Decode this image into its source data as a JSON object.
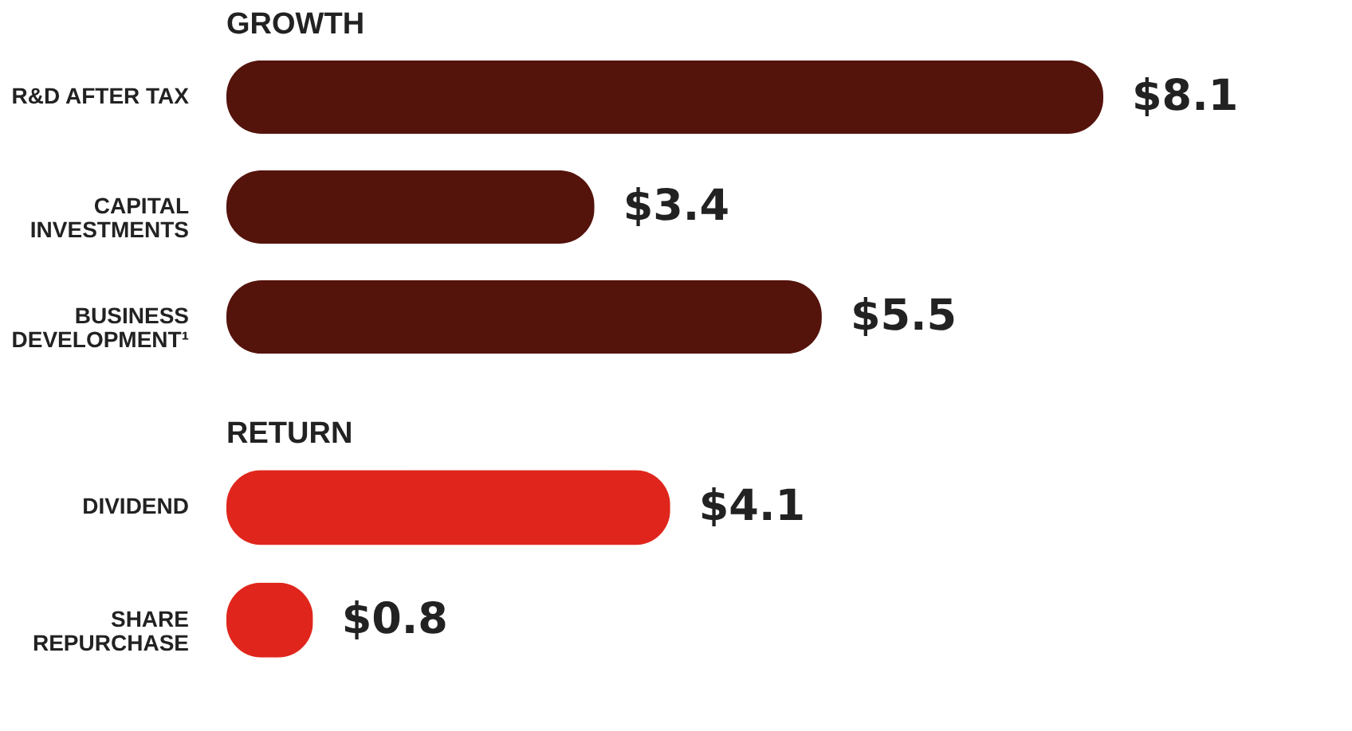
{
  "chart_data": [
    {
      "type": "bar",
      "orientation": "horizontal",
      "title": "GROWTH",
      "categories": [
        "R&D AFTER TAX",
        "CAPITAL\nINVESTMENTS",
        "BUSINESS\nDEVELOPMENT¹"
      ],
      "values": [
        8.1,
        3.4,
        5.5
      ],
      "value_labels": [
        "$8.1",
        "$3.4",
        "$5.5"
      ],
      "color": "#54130b",
      "tick_labels": "y"
    },
    {
      "type": "bar",
      "orientation": "horizontal",
      "title": "RETURN",
      "categories": [
        "DIVIDEND",
        "SHARE\nREPURCHASE"
      ],
      "values": [
        4.1,
        0.8
      ],
      "value_labels": [
        "$4.1",
        "$0.8"
      ],
      "color": "#e0261c",
      "tick_labels": "y"
    }
  ]
}
